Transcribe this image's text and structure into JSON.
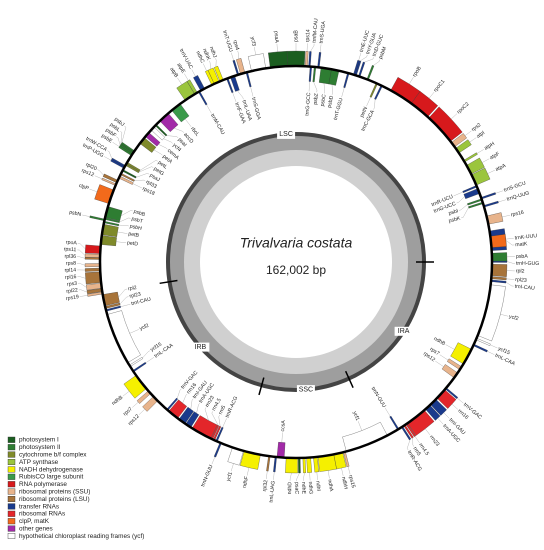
{
  "title": "Trivalvaria costata",
  "genome_size": {
    "value": 162002,
    "label": "162,002 bp"
  },
  "regions": [
    {
      "name": "LSC",
      "start": 0,
      "end": 85000
    },
    {
      "name": "IRB",
      "start": 85000,
      "end": 114500
    },
    {
      "name": "SSC",
      "start": 114500,
      "end": 132500
    },
    {
      "name": "IRA",
      "start": 132500,
      "end": 162002
    }
  ],
  "legend": [
    {
      "label": "photosystem I",
      "color": "#1b5e20"
    },
    {
      "label": "photosystem II",
      "color": "#2e7d32"
    },
    {
      "label": "cytochrome b/f complex",
      "color": "#7f8a2a"
    },
    {
      "label": "ATP synthase",
      "color": "#9bc53d"
    },
    {
      "label": "NADH dehydrogenase",
      "color": "#f5f000"
    },
    {
      "label": "RubisCO large subunit",
      "color": "#3a9a4a"
    },
    {
      "label": "RNA polymerase",
      "color": "#d7191c"
    },
    {
      "label": "ribosomal proteins (SSU)",
      "color": "#e8b48c"
    },
    {
      "label": "ribosomal proteins (LSU)",
      "color": "#a8743a"
    },
    {
      "label": "transfer RNAs",
      "color": "#1a3a8c"
    },
    {
      "label": "ribosomal RNAs",
      "color": "#e3262a"
    },
    {
      "label": "clpP, matK",
      "color": "#f26a1b"
    },
    {
      "label": "other genes",
      "color": "#a22aa8"
    },
    {
      "label": "hypothetical chloroplast reading frames (ycf)",
      "color": "#ffffff"
    }
  ],
  "genes": [
    {
      "name": "trnH-GUG",
      "start": 20,
      "end": 95,
      "strand": 1,
      "group": 9
    },
    {
      "name": "psbA",
      "start": 100,
      "end": 1160,
      "strand": 1,
      "group": 1
    },
    {
      "name": "trnK-UUU",
      "start": 1500,
      "end": 4100,
      "strand": 1,
      "group": 9
    },
    {
      "name": "matK",
      "start": 1900,
      "end": 3400,
      "strand": 1,
      "group": 11
    },
    {
      "name": "rps16",
      "start": 5000,
      "end": 6100,
      "strand": 1,
      "group": 7
    },
    {
      "name": "trnQ-UUG",
      "start": 7400,
      "end": 7470,
      "strand": 1,
      "group": 9
    },
    {
      "name": "psbK",
      "start": 7800,
      "end": 7990,
      "strand": -1,
      "group": 1
    },
    {
      "name": "psbI",
      "start": 8300,
      "end": 8410,
      "strand": -1,
      "group": 1
    },
    {
      "name": "trnS-GCU",
      "start": 8500,
      "end": 8590,
      "strand": 1,
      "group": 9
    },
    {
      "name": "trnG-UCC",
      "start": 9200,
      "end": 9900,
      "strand": -1,
      "group": 9
    },
    {
      "name": "trnR-UCU",
      "start": 10200,
      "end": 10270,
      "strand": -1,
      "group": 9
    },
    {
      "name": "atpA",
      "start": 10400,
      "end": 11900,
      "strand": 1,
      "group": 3
    },
    {
      "name": "atpF",
      "start": 12000,
      "end": 13300,
      "strand": 1,
      "group": 3
    },
    {
      "name": "atpH",
      "start": 13800,
      "end": 14050,
      "strand": 1,
      "group": 3
    },
    {
      "name": "atpI",
      "start": 15200,
      "end": 15950,
      "strand": 1,
      "group": 3
    },
    {
      "name": "rps2",
      "start": 16200,
      "end": 16900,
      "strand": 1,
      "group": 7
    },
    {
      "name": "rpoC2",
      "start": 17100,
      "end": 21300,
      "strand": 1,
      "group": 6
    },
    {
      "name": "rpoC1",
      "start": 21500,
      "end": 24300,
      "strand": 1,
      "group": 6
    },
    {
      "name": "rpoB",
      "start": 24300,
      "end": 27500,
      "strand": 1,
      "group": 6
    },
    {
      "name": "trnC-GCA",
      "start": 28800,
      "end": 28870,
      "strand": -1,
      "group": 9
    },
    {
      "name": "petN",
      "start": 29500,
      "end": 29590,
      "strand": -1,
      "group": 2
    },
    {
      "name": "psbM",
      "start": 30800,
      "end": 30900,
      "strand": 1,
      "group": 1
    },
    {
      "name": "trnD-GUC",
      "start": 32000,
      "end": 32070,
      "strand": 1,
      "group": 9
    },
    {
      "name": "trnY-GUA",
      "start": 32500,
      "end": 32580,
      "strand": 1,
      "group": 9
    },
    {
      "name": "trnE-UUC",
      "start": 32700,
      "end": 32770,
      "strand": 1,
      "group": 9
    },
    {
      "name": "trnT-GGU",
      "start": 33500,
      "end": 33570,
      "strand": -1,
      "group": 9
    },
    {
      "name": "psbD",
      "start": 34800,
      "end": 35860,
      "strand": -1,
      "group": 1
    },
    {
      "name": "psbC",
      "start": 35800,
      "end": 37200,
      "strand": -1,
      "group": 1
    },
    {
      "name": "trnS-UGA",
      "start": 37500,
      "end": 37590,
      "strand": 1,
      "group": 9
    },
    {
      "name": "psbZ",
      "start": 37900,
      "end": 38090,
      "strand": -1,
      "group": 1
    },
    {
      "name": "trnG-GCC",
      "start": 38500,
      "end": 38570,
      "strand": -1,
      "group": 9
    },
    {
      "name": "trnfM-CAU",
      "start": 38700,
      "end": 38770,
      "strand": 1,
      "group": 9
    },
    {
      "name": "rps14",
      "start": 39000,
      "end": 39300,
      "strand": 1,
      "group": 7
    },
    {
      "name": "psaB",
      "start": 39400,
      "end": 41600,
      "strand": 1,
      "group": 0
    },
    {
      "name": "psaA",
      "start": 41600,
      "end": 43900,
      "strand": 1,
      "group": 0
    },
    {
      "name": "ycf3",
      "start": 44500,
      "end": 46400,
      "strand": 1,
      "group": 13
    },
    {
      "name": "trnS-GGA",
      "start": 47000,
      "end": 47090,
      "strand": -1,
      "group": 9
    },
    {
      "name": "rps4",
      "start": 47300,
      "end": 47900,
      "strand": 1,
      "group": 7
    },
    {
      "name": "trnT-UGU",
      "start": 48200,
      "end": 48270,
      "strand": 1,
      "group": 9
    },
    {
      "name": "trnL-UAA",
      "start": 48700,
      "end": 49300,
      "strand": -1,
      "group": 9
    },
    {
      "name": "trnF-GAA",
      "start": 49700,
      "end": 49770,
      "strand": -1,
      "group": 9
    },
    {
      "name": "ndhJ",
      "start": 50300,
      "end": 50780,
      "strand": 1,
      "group": 4
    },
    {
      "name": "ndhK",
      "start": 50900,
      "end": 51600,
      "strand": 1,
      "group": 4
    },
    {
      "name": "ndhC",
      "start": 51600,
      "end": 51960,
      "strand": 1,
      "group": 4
    },
    {
      "name": "trnV-UAC",
      "start": 53000,
      "end": 53600,
      "strand": 1,
      "group": 9
    },
    {
      "name": "trnM-CAU",
      "start": 53800,
      "end": 53870,
      "strand": -1,
      "group": 9
    },
    {
      "name": "atpE",
      "start": 54100,
      "end": 54500,
      "strand": 1,
      "group": 3
    },
    {
      "name": "atpB",
      "start": 54500,
      "end": 56000,
      "strand": 1,
      "group": 3
    },
    {
      "name": "rbcL",
      "start": 56800,
      "end": 58200,
      "strand": -1,
      "group": 5
    },
    {
      "name": "accD",
      "start": 58800,
      "end": 60300,
      "strand": -1,
      "group": 12
    },
    {
      "name": "psaI",
      "start": 61000,
      "end": 61110,
      "strand": -1,
      "group": 0
    },
    {
      "name": "ycf4",
      "start": 61400,
      "end": 61950,
      "strand": -1,
      "group": 13
    },
    {
      "name": "cemA",
      "start": 62400,
      "end": 63100,
      "strand": -1,
      "group": 12
    },
    {
      "name": "petA",
      "start": 63300,
      "end": 64260,
      "strand": -1,
      "group": 2
    },
    {
      "name": "psbJ",
      "start": 65500,
      "end": 65620,
      "strand": 1,
      "group": 1
    },
    {
      "name": "psbL",
      "start": 65700,
      "end": 65810,
      "strand": 1,
      "group": 1
    },
    {
      "name": "psbF",
      "start": 65830,
      "end": 65950,
      "strand": 1,
      "group": 1
    },
    {
      "name": "psbE",
      "start": 65960,
      "end": 66210,
      "strand": 1,
      "group": 1
    },
    {
      "name": "petL",
      "start": 67300,
      "end": 67400,
      "strand": -1,
      "group": 2
    },
    {
      "name": "petG",
      "start": 67550,
      "end": 67660,
      "strand": -1,
      "group": 2
    },
    {
      "name": "trnW-CCA",
      "start": 67800,
      "end": 67870,
      "strand": 1,
      "group": 9
    },
    {
      "name": "trnP-UGG",
      "start": 68000,
      "end": 68070,
      "strand": 1,
      "group": 9
    },
    {
      "name": "psaJ",
      "start": 68400,
      "end": 68530,
      "strand": -1,
      "group": 0
    },
    {
      "name": "rpl33",
      "start": 68900,
      "end": 69100,
      "strand": -1,
      "group": 8
    },
    {
      "name": "rps18",
      "start": 69300,
      "end": 69610,
      "strand": -1,
      "group": 7
    },
    {
      "name": "rpl20",
      "start": 69900,
      "end": 70260,
      "strand": 1,
      "group": 8
    },
    {
      "name": "rps12",
      "start": 70500,
      "end": 70620,
      "strand": 1,
      "group": 7
    },
    {
      "name": "clpP",
      "start": 71300,
      "end": 73200,
      "strand": 1,
      "group": 11
    },
    {
      "name": "psbB",
      "start": 73600,
      "end": 75100,
      "strand": -1,
      "group": 1
    },
    {
      "name": "psbT",
      "start": 75200,
      "end": 75300,
      "strand": -1,
      "group": 1
    },
    {
      "name": "psbN",
      "start": 75350,
      "end": 75490,
      "strand": 1,
      "group": 1
    },
    {
      "name": "psbH",
      "start": 75600,
      "end": 75820,
      "strand": -1,
      "group": 1
    },
    {
      "name": "petB",
      "start": 76000,
      "end": 77400,
      "strand": -1,
      "group": 2
    },
    {
      "name": "petD",
      "start": 77500,
      "end": 78700,
      "strand": -1,
      "group": 2
    },
    {
      "name": "rpoA",
      "start": 78900,
      "end": 79900,
      "strand": 1,
      "group": 6
    },
    {
      "name": "rps11",
      "start": 80000,
      "end": 80420,
      "strand": 1,
      "group": 7
    },
    {
      "name": "rpl36",
      "start": 80500,
      "end": 80610,
      "strand": 1,
      "group": 8
    },
    {
      "name": "rps8",
      "start": 81200,
      "end": 81600,
      "strand": 1,
      "group": 7
    },
    {
      "name": "rpl14",
      "start": 81800,
      "end": 82170,
      "strand": 1,
      "group": 8
    },
    {
      "name": "rpl16",
      "start": 82300,
      "end": 83700,
      "strand": 1,
      "group": 8
    },
    {
      "name": "rps3",
      "start": 83800,
      "end": 84450,
      "strand": 1,
      "group": 7
    },
    {
      "name": "rpl22",
      "start": 84500,
      "end": 84900,
      "strand": 1,
      "group": 8
    },
    {
      "name": "rps19",
      "start": 84950,
      "end": 85230,
      "strand": 1,
      "group": 7
    },
    {
      "name": "rpl2",
      "start": 85300,
      "end": 86800,
      "strand": -1,
      "group": 8
    },
    {
      "name": "rpl23",
      "start": 86900,
      "end": 87180,
      "strand": -1,
      "group": 8
    },
    {
      "name": "trnI-CAU",
      "start": 87400,
      "end": 87470,
      "strand": -1,
      "group": 9
    },
    {
      "name": "ycf2",
      "start": 88000,
      "end": 94900,
      "strand": -1,
      "group": 13
    },
    {
      "name": "ycf15",
      "start": 95300,
      "end": 95500,
      "strand": -1,
      "group": 13
    },
    {
      "name": "trnL-CAA",
      "start": 96200,
      "end": 96280,
      "strand": -1,
      "group": 9
    },
    {
      "name": "ndhB",
      "start": 96900,
      "end": 99100,
      "strand": 1,
      "group": 4
    },
    {
      "name": "rps7",
      "start": 99500,
      "end": 99970,
      "strand": 1,
      "group": 7
    },
    {
      "name": "rps12",
      "start": 100500,
      "end": 101300,
      "strand": 1,
      "group": 7
    },
    {
      "name": "trnV-GAC",
      "start": 103000,
      "end": 103070,
      "strand": -1,
      "group": 9
    },
    {
      "name": "rrn16",
      "start": 103300,
      "end": 104800,
      "strand": -1,
      "group": 10
    },
    {
      "name": "trnI-GAU",
      "start": 105000,
      "end": 106000,
      "strand": -1,
      "group": 9
    },
    {
      "name": "trnA-UGC",
      "start": 106100,
      "end": 106900,
      "strand": -1,
      "group": 9
    },
    {
      "name": "rrn23",
      "start": 107100,
      "end": 109900,
      "strand": -1,
      "group": 10
    },
    {
      "name": "rrn4.5",
      "start": 110000,
      "end": 110100,
      "strand": -1,
      "group": 10
    },
    {
      "name": "rrn5",
      "start": 110300,
      "end": 110420,
      "strand": -1,
      "group": 10
    },
    {
      "name": "trnR-ACG",
      "start": 110700,
      "end": 110770,
      "strand": -1,
      "group": 9
    },
    {
      "name": "trnN-GUU",
      "start": 111300,
      "end": 111370,
      "strand": 1,
      "group": 9
    },
    {
      "name": "ycf1",
      "start": 113000,
      "end": 114500,
      "strand": 1,
      "group": 13
    },
    {
      "name": "ndhF",
      "start": 114600,
      "end": 116800,
      "strand": 1,
      "group": 4
    },
    {
      "name": "rpl32",
      "start": 117900,
      "end": 118070,
      "strand": 1,
      "group": 8
    },
    {
      "name": "trnL-UAG",
      "start": 118800,
      "end": 118880,
      "strand": 1,
      "group": 9
    },
    {
      "name": "ccsA",
      "start": 119000,
      "end": 119950,
      "strand": -1,
      "group": 12
    },
    {
      "name": "ndhD",
      "start": 120200,
      "end": 121700,
      "strand": 1,
      "group": 4
    },
    {
      "name": "psaC",
      "start": 121800,
      "end": 122050,
      "strand": 1,
      "group": 0
    },
    {
      "name": "ndhE",
      "start": 122400,
      "end": 122700,
      "strand": 1,
      "group": 4
    },
    {
      "name": "ndhG",
      "start": 122900,
      "end": 123430,
      "strand": 1,
      "group": 4
    },
    {
      "name": "ndhI",
      "start": 123800,
      "end": 124300,
      "strand": 1,
      "group": 4
    },
    {
      "name": "ndhA",
      "start": 124400,
      "end": 126500,
      "strand": 1,
      "group": 4
    },
    {
      "name": "ndhH",
      "start": 126500,
      "end": 127700,
      "strand": 1,
      "group": 4
    },
    {
      "name": "rps15",
      "start": 127800,
      "end": 128070,
      "strand": 1,
      "group": 7
    },
    {
      "name": "ycf1",
      "start": 128200,
      "end": 134000,
      "strand": -1,
      "group": 13
    },
    {
      "name": "trnN-GUU",
      "start": 135600,
      "end": 135670,
      "strand": -1,
      "group": 9
    },
    {
      "name": "trnR-ACG",
      "start": 136200,
      "end": 136270,
      "strand": 1,
      "group": 9
    },
    {
      "name": "rrn5",
      "start": 136550,
      "end": 136670,
      "strand": 1,
      "group": 10
    },
    {
      "name": "rrn4.5",
      "start": 136900,
      "end": 137000,
      "strand": 1,
      "group": 10
    },
    {
      "name": "rrn23",
      "start": 137100,
      "end": 139900,
      "strand": 1,
      "group": 10
    },
    {
      "name": "trnA-UGC",
      "start": 140100,
      "end": 140900,
      "strand": 1,
      "group": 9
    },
    {
      "name": "trnI-GAU",
      "start": 141000,
      "end": 142000,
      "strand": 1,
      "group": 9
    },
    {
      "name": "rrn16",
      "start": 142200,
      "end": 143700,
      "strand": 1,
      "group": 10
    },
    {
      "name": "trnV-GAC",
      "start": 143900,
      "end": 143970,
      "strand": 1,
      "group": 9
    },
    {
      "name": "rps12",
      "start": 145700,
      "end": 146500,
      "strand": -1,
      "group": 7
    },
    {
      "name": "rps7",
      "start": 147000,
      "end": 147470,
      "strand": -1,
      "group": 7
    },
    {
      "name": "ndhB",
      "start": 147900,
      "end": 150100,
      "strand": -1,
      "group": 4
    },
    {
      "name": "trnL-CAA",
      "start": 150700,
      "end": 150780,
      "strand": 1,
      "group": 9
    },
    {
      "name": "ycf15",
      "start": 151500,
      "end": 151700,
      "strand": 1,
      "group": 13
    },
    {
      "name": "ycf2",
      "start": 152100,
      "end": 159000,
      "strand": 1,
      "group": 13
    },
    {
      "name": "trnI-CAU",
      "start": 159500,
      "end": 159570,
      "strand": 1,
      "group": 9
    },
    {
      "name": "rpl23",
      "start": 159800,
      "end": 160080,
      "strand": 1,
      "group": 8
    },
    {
      "name": "rpl2",
      "start": 160200,
      "end": 161700,
      "strand": 1,
      "group": 8
    }
  ]
}
